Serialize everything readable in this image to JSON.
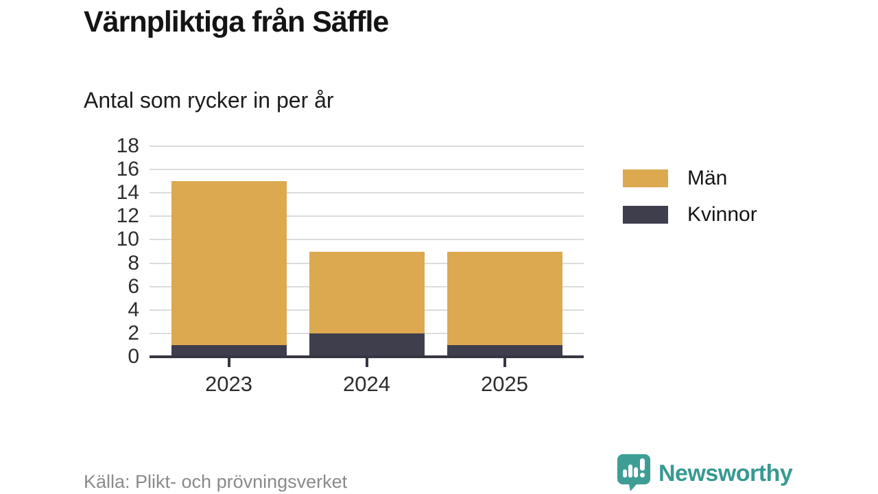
{
  "header": {
    "title": "Värnpliktiga från Säffle",
    "subtitle": "Antal som rycker in per år"
  },
  "chart_data": {
    "type": "bar",
    "stacked": true,
    "title": "Värnpliktiga från Säffle",
    "subtitle": "Antal som rycker in per år",
    "categories": [
      "2023",
      "2024",
      "2025"
    ],
    "series": [
      {
        "name": "Kvinnor",
        "color": "#3E3E4D",
        "values": [
          1,
          2,
          1
        ]
      },
      {
        "name": "Män",
        "color": "#DCA950",
        "values": [
          14,
          7,
          8
        ]
      }
    ],
    "totals": [
      15,
      9,
      9
    ],
    "xlabel": "",
    "ylabel": "",
    "ylim": [
      0,
      18
    ],
    "ytick_step": 2,
    "yticks": [
      0,
      2,
      4,
      6,
      8,
      10,
      12,
      14,
      16,
      18
    ],
    "grid": true,
    "legend_position": "right",
    "legend_order": [
      "Män",
      "Kvinnor"
    ]
  },
  "colors": {
    "men": "#DCA950",
    "women": "#3E3E4D",
    "axis": "#363642",
    "gridline": "#DCDCDC",
    "source_text": "#8A8A8A",
    "brand_teal": "#379A91"
  },
  "footer": {
    "source": "Källa: Plikt- och prövningsverket",
    "brand": "Newsworthy"
  }
}
